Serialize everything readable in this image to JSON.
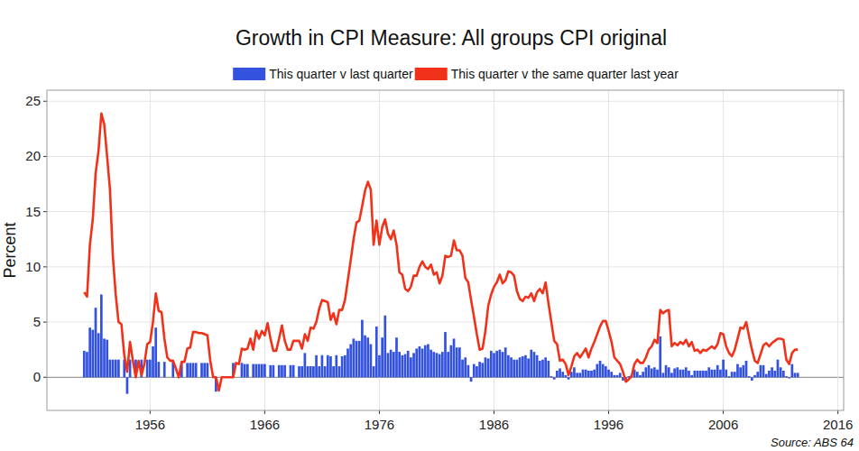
{
  "chart_data": {
    "type": "bar",
    "title": "Growth in CPI Measure: All groups CPI original",
    "y_label": "Percent",
    "source": "Source: ABS 64",
    "x": [
      1950.25,
      1950.5,
      1950.75,
      1951,
      1951.25,
      1951.5,
      1951.75,
      1952,
      1952.25,
      1952.5,
      1952.75,
      1953,
      1953.25,
      1953.5,
      1953.75,
      1954,
      1954.25,
      1954.5,
      1954.75,
      1955,
      1955.25,
      1955.5,
      1955.75,
      1956,
      1956.25,
      1956.5,
      1956.75,
      1957,
      1957.25,
      1957.5,
      1957.75,
      1958,
      1958.25,
      1958.5,
      1958.75,
      1959,
      1959.25,
      1959.5,
      1959.75,
      1960,
      1960.25,
      1960.5,
      1960.75,
      1961,
      1961.25,
      1961.5,
      1961.75,
      1962,
      1962.25,
      1962.5,
      1962.75,
      1963,
      1963.25,
      1963.5,
      1963.75,
      1964,
      1964.25,
      1964.5,
      1964.75,
      1965,
      1965.25,
      1965.5,
      1965.75,
      1966,
      1966.25,
      1966.5,
      1966.75,
      1967,
      1967.25,
      1967.5,
      1967.75,
      1968,
      1968.25,
      1968.5,
      1968.75,
      1969,
      1969.25,
      1969.5,
      1969.75,
      1970,
      1970.25,
      1970.5,
      1970.75,
      1971,
      1971.25,
      1971.5,
      1971.75,
      1972,
      1972.25,
      1972.5,
      1972.75,
      1973,
      1973.25,
      1973.5,
      1973.75,
      1974,
      1974.25,
      1974.5,
      1974.75,
      1975,
      1975.25,
      1975.5,
      1975.75,
      1976,
      1976.25,
      1976.5,
      1976.75,
      1977,
      1977.25,
      1977.5,
      1977.75,
      1978,
      1978.25,
      1978.5,
      1978.75,
      1979,
      1979.25,
      1979.5,
      1979.75,
      1980,
      1980.25,
      1980.5,
      1980.75,
      1981,
      1981.25,
      1981.5,
      1981.75,
      1982,
      1982.25,
      1982.5,
      1982.75,
      1983,
      1983.25,
      1983.5,
      1983.75,
      1984,
      1984.25,
      1984.5,
      1984.75,
      1985,
      1985.25,
      1985.5,
      1985.75,
      1986,
      1986.25,
      1986.5,
      1986.75,
      1987,
      1987.25,
      1987.5,
      1987.75,
      1988,
      1988.25,
      1988.5,
      1988.75,
      1989,
      1989.25,
      1989.5,
      1989.75,
      1990,
      1990.25,
      1990.5,
      1990.75,
      1991,
      1991.25,
      1991.5,
      1991.75,
      1992,
      1992.25,
      1992.5,
      1992.75,
      1993,
      1993.25,
      1993.5,
      1993.75,
      1994,
      1994.25,
      1994.5,
      1994.75,
      1995,
      1995.25,
      1995.5,
      1995.75,
      1996,
      1996.25,
      1996.5,
      1996.75,
      1997,
      1997.25,
      1997.5,
      1997.75,
      1998,
      1998.25,
      1998.5,
      1998.75,
      1999,
      1999.25,
      1999.5,
      1999.75,
      2000,
      2000.25,
      2000.5,
      2000.75,
      2001,
      2001.25,
      2001.5,
      2001.75,
      2002,
      2002.25,
      2002.5,
      2002.75,
      2003,
      2003.25,
      2003.5,
      2003.75,
      2004,
      2004.25,
      2004.5,
      2004.75,
      2005,
      2005.25,
      2005.5,
      2005.75,
      2006,
      2006.25,
      2006.5,
      2006.75,
      2007,
      2007.25,
      2007.5,
      2007.75,
      2008,
      2008.25,
      2008.5,
      2008.75,
      2009,
      2009.25,
      2009.5,
      2009.75,
      2010,
      2010.25,
      2010.5,
      2010.75,
      2011,
      2011.25,
      2011.5,
      2011.75,
      2012,
      2012.25,
      2012.5
    ],
    "series": [
      {
        "name": "This quarter v last quarter",
        "type": "bar",
        "color": "#3352de",
        "values": [
          2.4,
          2.3,
          4.5,
          4.3,
          6.3,
          4.0,
          7.5,
          3.5,
          3.4,
          1.6,
          1.6,
          1.6,
          1.6,
          null,
          1.6,
          -1.5,
          1.6,
          null,
          1.6,
          null,
          1.6,
          null,
          1.6,
          1.6,
          2.8,
          4.5,
          1.4,
          null,
          1.4,
          null,
          null,
          1.4,
          null,
          null,
          1.3,
          null,
          1.3,
          1.3,
          1.3,
          1.3,
          null,
          1.3,
          1.3,
          1.3,
          null,
          null,
          -1.3,
          null,
          null,
          null,
          null,
          null,
          1.3,
          null,
          null,
          1.3,
          1.2,
          1.2,
          null,
          1.2,
          1.2,
          1.2,
          1.2,
          1.2,
          null,
          1.1,
          1.1,
          null,
          1.1,
          1.1,
          1.1,
          null,
          1.1,
          1.1,
          null,
          1.0,
          1.0,
          2.2,
          1.0,
          1.0,
          1.0,
          2.0,
          1.0,
          2.0,
          1.0,
          2.0,
          1.9,
          1.0,
          2.0,
          1.0,
          1.9,
          2.0,
          2.6,
          3.0,
          3.5,
          3.3,
          3.3,
          5.2,
          3.8,
          3.6,
          3.0,
          1.0,
          4.6,
          2.0,
          3.6,
          5.6,
          2.2,
          2.5,
          2.3,
          3.6,
          2.3,
          2.0,
          2.1,
          2.4,
          1.8,
          2.2,
          2.6,
          2.8,
          2.6,
          2.9,
          3.0,
          2.5,
          2.3,
          2.2,
          2.1,
          2.3,
          4.1,
          2.3,
          2.9,
          3.5,
          2.7,
          2.7,
          1.6,
          1.8,
          1.1,
          -0.4,
          1.2,
          1.0,
          1.4,
          1.3,
          1.8,
          1.7,
          2.4,
          2.2,
          2.4,
          2.5,
          2.3,
          2.7,
          2.0,
          1.8,
          1.6,
          1.6,
          1.8,
          1.9,
          2.0,
          1.7,
          2.5,
          2.3,
          2.0,
          1.5,
          1.6,
          1.8,
          1.5,
          0.1,
          -0.2,
          0.6,
          0.8,
          0.5,
          0.2,
          -0.2,
          0.5,
          0.9,
          0.4,
          0.4,
          0.7,
          0.7,
          0.6,
          0.6,
          0.7,
          1.2,
          1.5,
          1.2,
          1.0,
          0.7,
          0.5,
          0.2,
          0.2,
          0.4,
          -0.3,
          -0.3,
          0.1,
          0.2,
          0.7,
          0.5,
          0.2,
          0.5,
          0.9,
          1.1,
          0.8,
          0.9,
          0.7,
          3.7,
          0.4,
          1.1,
          0.9,
          0.4,
          0.8,
          0.9,
          0.7,
          0.7,
          0.9,
          0.6,
          0.2,
          0.6,
          0.6,
          0.6,
          0.6,
          0.6,
          0.9,
          0.7,
          0.7,
          1.1,
          0.7,
          1.6,
          0.7,
          0.1,
          0.5,
          0.5,
          1.2,
          0.9,
          1.1,
          1.5,
          0.1,
          -0.3,
          0.2,
          0.5,
          1.1,
          1.1,
          0.3,
          0.6,
          0.9,
          0.6,
          1.6,
          0.9,
          0.6,
          0.1,
          -0.1,
          1.2,
          0.4,
          0.4
        ]
      },
      {
        "name": "This quarter v the same quarter last year",
        "type": "line",
        "color": "#f0321a",
        "values": [
          7.7,
          7.3,
          12.0,
          14.3,
          18.5,
          20.5,
          23.9,
          22.9,
          20.0,
          17.0,
          11.0,
          7.5,
          5.0,
          4.8,
          2.0,
          0.5,
          3.2,
          1.5,
          0.0,
          1.5,
          0.2,
          1.2,
          3.0,
          3.2,
          5.0,
          7.6,
          6.0,
          5.9,
          3.5,
          1.8,
          1.5,
          1.5,
          0.8,
          0.0,
          1.4,
          1.4,
          2.6,
          2.7,
          4.1,
          4.1,
          4.0,
          4.0,
          3.9,
          3.8,
          1.5,
          0.0,
          0.0,
          -1.2,
          0.0,
          0.0,
          0.0,
          0.0,
          0.0,
          1.3,
          1.2,
          2.6,
          2.5,
          2.6,
          3.5,
          2.5,
          4.2,
          3.5,
          4.2,
          3.8,
          4.9,
          3.5,
          2.4,
          2.4,
          3.5,
          4.7,
          3.3,
          2.5,
          2.5,
          3.3,
          3.3,
          3.3,
          2.6,
          3.9,
          3.3,
          4.5,
          4.4,
          5.0,
          6.2,
          7.0,
          6.9,
          6.8,
          5.2,
          5.8,
          4.8,
          6.1,
          6.1,
          7.0,
          8.8,
          10.6,
          12.5,
          14.0,
          14.2,
          15.5,
          16.9,
          17.7,
          17.0,
          12.0,
          14.2,
          12.0,
          13.6,
          14.3,
          13.0,
          12.5,
          13.3,
          12.0,
          9.5,
          9.3,
          8.0,
          7.8,
          8.2,
          9.2,
          9.2,
          10.0,
          10.5,
          10.0,
          9.8,
          10.2,
          9.3,
          9.5,
          8.5,
          9.2,
          11.0,
          10.9,
          11.0,
          12.4,
          11.5,
          11.5,
          11.0,
          9.0,
          8.6,
          7.0,
          5.5,
          3.9,
          2.5,
          2.6,
          4.2,
          6.5,
          7.5,
          8.2,
          8.6,
          9.3,
          8.5,
          8.8,
          9.6,
          9.5,
          9.2,
          7.8,
          7.1,
          6.9,
          7.3,
          7.2,
          7.6,
          6.9,
          7.7,
          8.0,
          7.6,
          8.6,
          6.7,
          5.0,
          3.3,
          3.0,
          1.5,
          1.6,
          1.2,
          0.2,
          1.0,
          1.9,
          2.2,
          1.8,
          2.2,
          2.6,
          1.8,
          2.6,
          3.2,
          3.9,
          4.6,
          5.1,
          5.1,
          4.2,
          3.2,
          1.8,
          1.5,
          1.2,
          0.5,
          -0.4,
          -0.2,
          0.1,
          1.2,
          1.6,
          1.3,
          1.3,
          1.8,
          2.5,
          2.8,
          3.4,
          3.1,
          6.1,
          5.8,
          6.0,
          6.1,
          2.8,
          3.1,
          2.9,
          3.2,
          3.0,
          3.4,
          2.8,
          3.2,
          2.4,
          2.5,
          2.2,
          2.5,
          2.4,
          2.6,
          2.8,
          2.6,
          3.0,
          4.0,
          3.9,
          2.8,
          2.2,
          1.9,
          2.5,
          3.5,
          4.5,
          4.4,
          5.0,
          3.7,
          2.5,
          1.5,
          1.3,
          2.1,
          2.9,
          3.1,
          2.8,
          3.1,
          3.3,
          3.5,
          3.5,
          3.4,
          1.6,
          1.2,
          2.2,
          2.5,
          2.5
        ]
      }
    ],
    "xlim": [
      1947,
      2016.5
    ],
    "xticks": [
      1956,
      1966,
      1976,
      1986,
      1996,
      2006,
      2016
    ],
    "ylim": [
      -3,
      26
    ],
    "yticks": [
      0,
      5,
      10,
      15,
      20,
      25
    ],
    "grid": true,
    "legend": "top"
  }
}
